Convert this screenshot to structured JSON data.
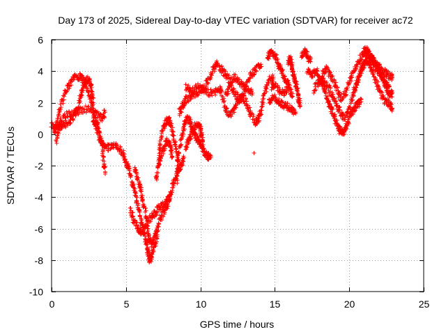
{
  "chart_data": {
    "type": "scatter",
    "title": "Day 173 of 2025, Sidereal Day-to-day VTEC variation (SDTVAR) for receiver ac72",
    "xlabel": "GPS time / hours",
    "ylabel": "SDTVAR / TECUs",
    "xlim": [
      0,
      25
    ],
    "ylim": [
      -10,
      6
    ],
    "xticks": [
      0,
      5,
      10,
      15,
      20,
      25
    ],
    "yticks": [
      -10,
      -8,
      -6,
      -4,
      -2,
      0,
      2,
      4,
      6
    ],
    "grid": true,
    "marker": "plus",
    "series": [
      {
        "name": "SDTVAR",
        "color": "#ff0000",
        "tracks": [
          [
            [
              0.0,
              0.6
            ],
            [
              0.3,
              0.3
            ],
            [
              0.6,
              0.8
            ],
            [
              1.0,
              1.2
            ],
            [
              1.5,
              1.3
            ],
            [
              2.0,
              1.5
            ],
            [
              2.5,
              1.6
            ],
            [
              3.0,
              1.3
            ],
            [
              3.4,
              1.0
            ],
            [
              3.6,
              1.4
            ]
          ],
          [
            [
              0.2,
              0.0
            ],
            [
              0.4,
              1.0
            ],
            [
              0.7,
              2.0
            ],
            [
              1.0,
              2.8
            ],
            [
              1.3,
              3.3
            ],
            [
              1.7,
              3.7
            ],
            [
              2.0,
              3.6
            ],
            [
              2.3,
              3.2
            ],
            [
              2.6,
              2.4
            ],
            [
              2.8,
              1.5
            ],
            [
              3.0,
              0.8
            ],
            [
              3.2,
              0.2
            ],
            [
              3.4,
              -0.7
            ],
            [
              3.5,
              -1.8
            ],
            [
              3.6,
              -2.4
            ]
          ],
          [
            [
              0.3,
              -0.4
            ],
            [
              0.5,
              0.3
            ],
            [
              0.8,
              0.6
            ],
            [
              1.2,
              0.8
            ],
            [
              1.5,
              1.2
            ],
            [
              1.8,
              1.8
            ],
            [
              2.0,
              2.5
            ],
            [
              2.2,
              3.2
            ],
            [
              2.4,
              3.5
            ],
            [
              2.6,
              3.3
            ],
            [
              2.7,
              2.8
            ],
            [
              2.8,
              2.0
            ]
          ],
          [
            [
              2.8,
              1.0
            ],
            [
              3.0,
              0.3
            ],
            [
              3.3,
              -0.5
            ],
            [
              3.6,
              -0.9
            ],
            [
              4.0,
              -0.8
            ],
            [
              4.4,
              -0.7
            ],
            [
              4.8,
              -1.2
            ],
            [
              5.0,
              -1.8
            ],
            [
              5.2,
              -2.3
            ],
            [
              5.4,
              -3.0
            ],
            [
              5.6,
              -3.8
            ],
            [
              5.8,
              -4.6
            ],
            [
              6.0,
              -5.4
            ],
            [
              6.2,
              -6.3
            ],
            [
              6.4,
              -7.0
            ],
            [
              6.5,
              -7.6
            ],
            [
              6.6,
              -8.0
            ],
            [
              6.7,
              -7.8
            ],
            [
              6.9,
              -7.2
            ],
            [
              7.1,
              -6.5
            ]
          ],
          [
            [
              5.3,
              -4.8
            ],
            [
              5.5,
              -5.4
            ],
            [
              5.8,
              -6.0
            ],
            [
              6.0,
              -6.2
            ],
            [
              6.3,
              -5.9
            ],
            [
              6.6,
              -5.4
            ],
            [
              6.9,
              -5.1
            ],
            [
              7.2,
              -4.7
            ],
            [
              7.5,
              -4.5
            ],
            [
              7.8,
              -4.2
            ],
            [
              8.0,
              -3.8
            ]
          ],
          [
            [
              5.6,
              -2.2
            ],
            [
              5.8,
              -2.8
            ],
            [
              6.0,
              -3.5
            ],
            [
              6.2,
              -4.5
            ],
            [
              6.4,
              -5.5
            ],
            [
              6.5,
              -6.5
            ],
            [
              6.7,
              -7.0
            ],
            [
              6.9,
              -6.6
            ],
            [
              7.1,
              -6.1
            ],
            [
              7.3,
              -5.4
            ],
            [
              7.6,
              -4.8
            ],
            [
              7.9,
              -4.2
            ],
            [
              8.1,
              -3.4
            ],
            [
              8.3,
              -2.8
            ],
            [
              8.5,
              -2.3
            ],
            [
              8.7,
              -1.9
            ],
            [
              8.9,
              -1.5
            ]
          ],
          [
            [
              7.0,
              -3.0
            ],
            [
              7.2,
              -1.8
            ],
            [
              7.3,
              -0.5
            ],
            [
              7.5,
              0.4
            ],
            [
              7.7,
              0.8
            ],
            [
              7.9,
              1.0
            ],
            [
              8.0,
              0.6
            ],
            [
              8.2,
              -0.2
            ],
            [
              8.4,
              -1.0
            ],
            [
              8.5,
              -2.0
            ]
          ],
          [
            [
              7.2,
              -2.0
            ],
            [
              7.4,
              -1.3
            ],
            [
              7.6,
              -0.7
            ],
            [
              7.8,
              -0.4
            ],
            [
              8.0,
              -0.8
            ],
            [
              8.1,
              -1.4
            ]
          ],
          [
            [
              8.4,
              -3.0
            ],
            [
              8.5,
              -1.5
            ],
            [
              8.7,
              -0.5
            ],
            [
              8.9,
              0.4
            ],
            [
              9.1,
              1.0
            ],
            [
              9.3,
              0.8
            ],
            [
              9.5,
              0.3
            ],
            [
              9.7,
              -0.2
            ],
            [
              9.9,
              -0.5
            ],
            [
              10.1,
              -0.9
            ],
            [
              10.3,
              -1.2
            ],
            [
              10.5,
              -1.4
            ],
            [
              10.7,
              -1.4
            ]
          ],
          [
            [
              9.0,
              -0.9
            ],
            [
              9.2,
              -0.4
            ],
            [
              9.4,
              0.0
            ],
            [
              9.6,
              0.4
            ],
            [
              9.8,
              0.7
            ],
            [
              10.0,
              0.4
            ],
            [
              10.1,
              -0.2
            ],
            [
              10.2,
              -0.9
            ]
          ],
          [
            [
              8.6,
              1.4
            ],
            [
              8.8,
              1.8
            ],
            [
              9.0,
              2.2
            ],
            [
              9.3,
              2.3
            ],
            [
              9.6,
              2.5
            ],
            [
              10.0,
              2.8
            ],
            [
              10.3,
              3.0
            ],
            [
              10.6,
              3.6
            ],
            [
              10.9,
              4.2
            ],
            [
              11.1,
              4.5
            ],
            [
              11.4,
              4.1
            ],
            [
              11.7,
              3.8
            ],
            [
              12.0,
              3.3
            ],
            [
              12.3,
              3.6
            ],
            [
              12.6,
              3.4
            ],
            [
              12.9,
              3.0
            ],
            [
              13.2,
              2.8
            ],
            [
              13.5,
              2.6
            ]
          ],
          [
            [
              9.0,
              3.0
            ],
            [
              9.4,
              2.8
            ],
            [
              9.8,
              3.0
            ],
            [
              10.2,
              2.7
            ],
            [
              10.6,
              2.6
            ],
            [
              11.0,
              2.7
            ],
            [
              11.4,
              2.8
            ]
          ],
          [
            [
              11.3,
              3.0
            ],
            [
              11.6,
              1.8
            ],
            [
              11.9,
              1.2
            ],
            [
              12.2,
              1.5
            ],
            [
              12.5,
              2.0
            ],
            [
              12.8,
              2.4
            ],
            [
              13.1,
              2.0
            ],
            [
              13.4,
              1.2
            ],
            [
              13.7,
              0.7
            ],
            [
              13.9,
              1.0
            ],
            [
              14.1,
              1.5
            ],
            [
              14.3,
              2.5
            ],
            [
              14.6,
              3.4
            ],
            [
              14.9,
              3.6
            ]
          ],
          [
            [
              11.7,
              2.5
            ],
            [
              12.0,
              3.0
            ],
            [
              12.3,
              2.6
            ],
            [
              12.6,
              2.2
            ],
            [
              12.9,
              2.6
            ],
            [
              13.2,
              3.4
            ],
            [
              13.5,
              3.9
            ],
            [
              13.8,
              4.2
            ],
            [
              14.1,
              4.3
            ]
          ],
          [
            [
              14.5,
              4.8
            ],
            [
              14.7,
              5.2
            ],
            [
              14.9,
              5.1
            ],
            [
              15.1,
              4.8
            ],
            [
              15.3,
              4.3
            ],
            [
              15.5,
              4.0
            ],
            [
              15.7,
              3.5
            ],
            [
              16.0,
              3.1
            ]
          ],
          [
            [
              14.8,
              3.0
            ],
            [
              15.0,
              3.2
            ],
            [
              15.3,
              2.8
            ],
            [
              15.6,
              2.6
            ],
            [
              15.9,
              3.0
            ],
            [
              16.2,
              2.4
            ]
          ],
          [
            [
              14.6,
              2.0
            ],
            [
              14.9,
              2.4
            ],
            [
              15.2,
              2.1
            ],
            [
              15.5,
              1.9
            ],
            [
              15.8,
              1.8
            ],
            [
              16.1,
              1.6
            ],
            [
              16.4,
              1.4
            ]
          ],
          [
            [
              15.9,
              4.6
            ],
            [
              16.0,
              4.8
            ],
            [
              16.1,
              4.5
            ],
            [
              16.2,
              4.0
            ],
            [
              16.3,
              3.6
            ],
            [
              16.4,
              3.2
            ],
            [
              16.5,
              2.8
            ],
            [
              16.6,
              2.2
            ],
            [
              16.7,
              1.8
            ]
          ],
          [
            [
              16.8,
              5.0
            ],
            [
              17.0,
              5.3
            ],
            [
              17.2,
              5.0
            ],
            [
              17.4,
              4.6
            ]
          ],
          [
            [
              17.2,
              4.0
            ],
            [
              17.5,
              3.8
            ],
            [
              17.8,
              4.0
            ],
            [
              18.0,
              3.4
            ],
            [
              18.2,
              3.2
            ],
            [
              18.4,
              2.6
            ],
            [
              18.6,
              2.0
            ],
            [
              18.8,
              1.6
            ],
            [
              19.0,
              1.0
            ],
            [
              19.2,
              0.5
            ],
            [
              19.4,
              0.2
            ],
            [
              19.6,
              0.1
            ],
            [
              19.8,
              0.4
            ],
            [
              20.0,
              1.0
            ],
            [
              20.2,
              1.4
            ],
            [
              20.4,
              1.7
            ],
            [
              20.6,
              1.9
            ],
            [
              20.8,
              2.2
            ]
          ],
          [
            [
              17.6,
              2.8
            ],
            [
              17.9,
              3.3
            ],
            [
              18.2,
              3.5
            ],
            [
              18.5,
              3.1
            ],
            [
              18.8,
              2.6
            ],
            [
              19.1,
              2.0
            ],
            [
              19.4,
              1.4
            ],
            [
              19.7,
              1.0
            ],
            [
              20.0,
              1.6
            ],
            [
              20.3,
              2.5
            ],
            [
              20.6,
              3.4
            ],
            [
              20.9,
              4.3
            ],
            [
              21.2,
              4.9
            ],
            [
              21.5,
              4.6
            ],
            [
              21.8,
              4.2
            ],
            [
              22.1,
              3.8
            ],
            [
              22.4,
              3.3
            ],
            [
              22.7,
              3.0
            ]
          ],
          [
            [
              18.2,
              3.8
            ],
            [
              18.5,
              4.2
            ],
            [
              18.8,
              3.6
            ],
            [
              19.1,
              3.0
            ],
            [
              19.4,
              2.3
            ],
            [
              19.7,
              2.5
            ],
            [
              20.0,
              3.3
            ],
            [
              20.3,
              4.0
            ],
            [
              20.6,
              4.6
            ],
            [
              20.9,
              5.1
            ],
            [
              21.2,
              5.3
            ],
            [
              21.5,
              4.9
            ],
            [
              21.8,
              4.5
            ],
            [
              22.1,
              4.2
            ],
            [
              22.4,
              3.9
            ],
            [
              22.7,
              3.7
            ],
            [
              22.9,
              3.6
            ]
          ],
          [
            [
              20.3,
              2.8
            ],
            [
              20.6,
              3.5
            ],
            [
              20.9,
              4.3
            ],
            [
              21.2,
              4.7
            ],
            [
              21.5,
              4.1
            ],
            [
              21.8,
              3.3
            ],
            [
              22.1,
              2.6
            ],
            [
              22.4,
              2.1
            ],
            [
              22.7,
              1.9
            ],
            [
              22.9,
              1.6
            ]
          ],
          [
            [
              21.0,
              5.5
            ],
            [
              21.3,
              5.1
            ],
            [
              21.6,
              4.7
            ],
            [
              21.9,
              4.2
            ],
            [
              22.2,
              3.6
            ],
            [
              22.5,
              2.9
            ],
            [
              22.7,
              2.5
            ],
            [
              22.9,
              2.6
            ]
          ]
        ],
        "outliers": [
          [
            13.6,
            -1.2
          ]
        ]
      }
    ]
  }
}
